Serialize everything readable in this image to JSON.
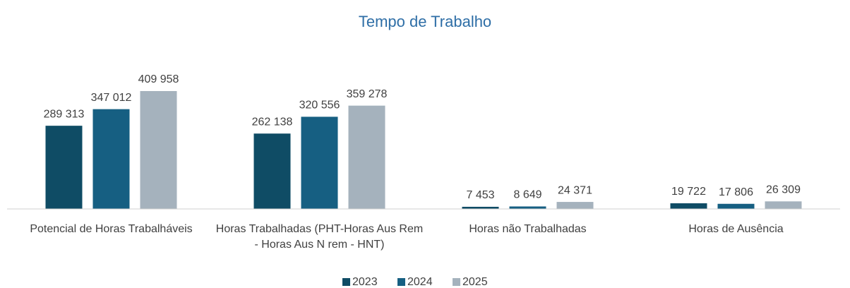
{
  "chart_data": {
    "type": "bar",
    "title": "Tempo de Trabalho",
    "categories": [
      "Potencial de Horas Trabalháveis",
      "Horas Trabalhadas (PHT-Horas Aus Rem - Horas Aus N rem - HNT)",
      "Horas não Trabalhadas",
      "Horas de Ausência"
    ],
    "series": [
      {
        "name": "2023",
        "color": "#0f4c65",
        "values": [
          289313,
          262138,
          7453,
          19722
        ],
        "value_labels": [
          "289 313",
          "262 138",
          "7 453",
          "19 722"
        ]
      },
      {
        "name": "2024",
        "color": "#165f82",
        "values": [
          347012,
          320556,
          8649,
          17806
        ],
        "value_labels": [
          "347 012",
          "320 556",
          "8 649",
          "17 806"
        ]
      },
      {
        "name": "2025",
        "color": "#a5b2bd",
        "values": [
          409958,
          359278,
          24371,
          26309
        ],
        "value_labels": [
          "409 958",
          "359 278",
          "24 371",
          "26 309"
        ]
      }
    ],
    "legend": "bottom"
  }
}
